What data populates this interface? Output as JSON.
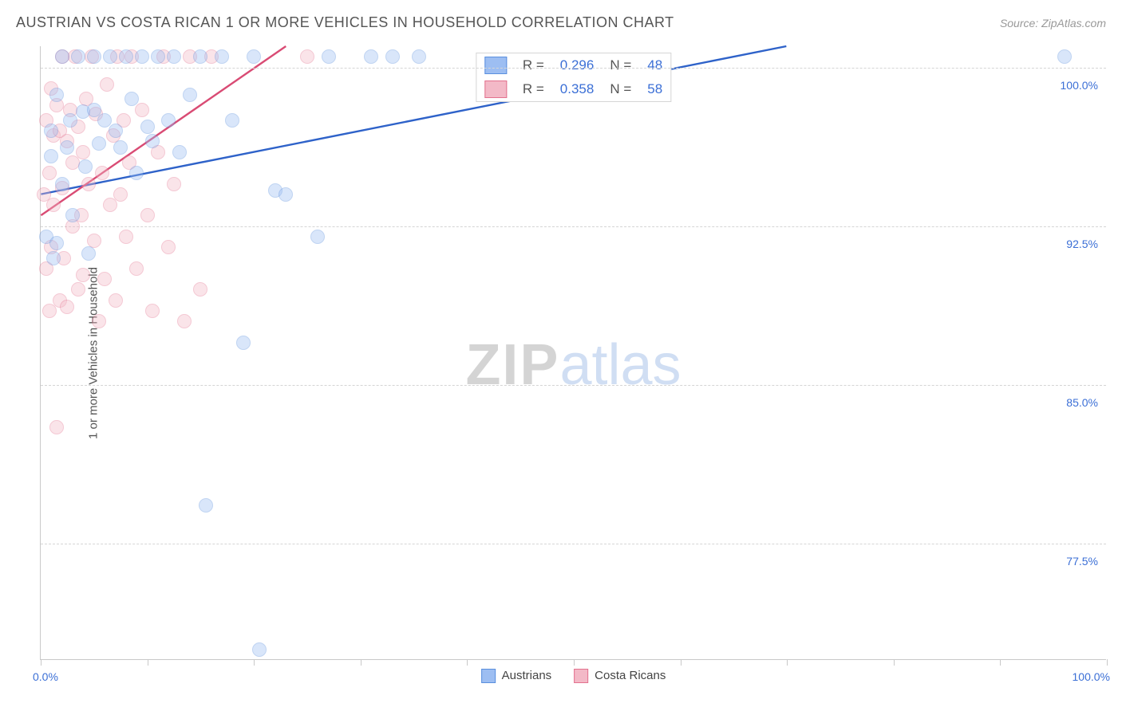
{
  "title": "AUSTRIAN VS COSTA RICAN 1 OR MORE VEHICLES IN HOUSEHOLD CORRELATION CHART",
  "source": "Source: ZipAtlas.com",
  "watermark": {
    "zip": "ZIP",
    "atlas": "atlas"
  },
  "chart": {
    "type": "scatter",
    "background_color": "#ffffff",
    "grid_color": "#d5d5d5",
    "border_color": "#c9c9c9",
    "ylabel": "1 or more Vehicles in Household",
    "ylabel_fontsize": 15,
    "xlim": [
      0,
      100
    ],
    "ylim": [
      72,
      101
    ],
    "yticks": [
      77.5,
      85.0,
      92.5,
      100.0
    ],
    "ytick_labels": [
      "77.5%",
      "85.0%",
      "92.5%",
      "100.0%"
    ],
    "xtick_positions": [
      0,
      10,
      20,
      30,
      40,
      50,
      60,
      70,
      80,
      90,
      100
    ],
    "x_labels": {
      "min": "0.0%",
      "max": "100.0%"
    },
    "tick_label_color": "#3b6fd6",
    "marker_radius": 9,
    "marker_opacity": 0.38,
    "series": [
      {
        "name": "Austrians",
        "color_fill": "#9dbef2",
        "color_stroke": "#5a8fde",
        "R": 0.296,
        "N": 48,
        "trend": {
          "x1": 0,
          "y1": 94.0,
          "x2": 70,
          "y2": 101.0,
          "stroke": "#2e62c9",
          "width": 2.4
        },
        "points": [
          [
            0.5,
            92.0
          ],
          [
            1.0,
            95.8
          ],
          [
            1.0,
            97.0
          ],
          [
            1.2,
            91.0
          ],
          [
            1.5,
            98.7
          ],
          [
            1.5,
            91.7
          ],
          [
            2.0,
            94.5
          ],
          [
            2.0,
            100.5
          ],
          [
            2.5,
            96.2
          ],
          [
            2.8,
            97.5
          ],
          [
            3.0,
            93.0
          ],
          [
            3.5,
            100.5
          ],
          [
            4.0,
            97.9
          ],
          [
            4.2,
            95.3
          ],
          [
            4.5,
            91.2
          ],
          [
            5.0,
            98.0
          ],
          [
            5.0,
            100.5
          ],
          [
            5.5,
            96.4
          ],
          [
            6.0,
            97.5
          ],
          [
            6.5,
            100.5
          ],
          [
            7.0,
            97.0
          ],
          [
            7.5,
            96.2
          ],
          [
            8.0,
            100.5
          ],
          [
            8.5,
            98.5
          ],
          [
            9.0,
            95.0
          ],
          [
            9.5,
            100.5
          ],
          [
            10.0,
            97.2
          ],
          [
            10.5,
            96.5
          ],
          [
            11.0,
            100.5
          ],
          [
            12.0,
            97.5
          ],
          [
            12.5,
            100.5
          ],
          [
            13.0,
            96.0
          ],
          [
            14.0,
            98.7
          ],
          [
            15.0,
            100.5
          ],
          [
            15.5,
            79.3
          ],
          [
            17.0,
            100.5
          ],
          [
            18.0,
            97.5
          ],
          [
            19.0,
            87.0
          ],
          [
            20.0,
            100.5
          ],
          [
            20.5,
            72.5
          ],
          [
            22.0,
            94.2
          ],
          [
            23.0,
            94.0
          ],
          [
            26.0,
            92.0
          ],
          [
            27.0,
            100.5
          ],
          [
            31.0,
            100.5
          ],
          [
            33.0,
            100.5
          ],
          [
            35.5,
            100.5
          ],
          [
            96.0,
            100.5
          ]
        ]
      },
      {
        "name": "Costa Ricans",
        "color_fill": "#f3b9c7",
        "color_stroke": "#e3718e",
        "R": 0.358,
        "N": 58,
        "trend": {
          "x1": 0,
          "y1": 93.0,
          "x2": 23,
          "y2": 101.0,
          "stroke": "#d94b74",
          "width": 2.4
        },
        "points": [
          [
            0.3,
            94.0
          ],
          [
            0.5,
            90.5
          ],
          [
            0.5,
            97.5
          ],
          [
            0.8,
            88.5
          ],
          [
            0.8,
            95.0
          ],
          [
            1.0,
            91.5
          ],
          [
            1.0,
            99.0
          ],
          [
            1.2,
            96.8
          ],
          [
            1.2,
            93.5
          ],
          [
            1.5,
            98.2
          ],
          [
            1.5,
            83.0
          ],
          [
            1.8,
            97.0
          ],
          [
            1.8,
            89.0
          ],
          [
            2.0,
            94.3
          ],
          [
            2.0,
            100.5
          ],
          [
            2.2,
            91.0
          ],
          [
            2.5,
            96.5
          ],
          [
            2.5,
            88.7
          ],
          [
            2.8,
            98.0
          ],
          [
            3.0,
            92.5
          ],
          [
            3.0,
            95.5
          ],
          [
            3.2,
            100.5
          ],
          [
            3.5,
            89.5
          ],
          [
            3.5,
            97.2
          ],
          [
            3.8,
            93.0
          ],
          [
            4.0,
            96.0
          ],
          [
            4.0,
            90.2
          ],
          [
            4.3,
            98.5
          ],
          [
            4.5,
            94.5
          ],
          [
            4.8,
            100.5
          ],
          [
            5.0,
            91.8
          ],
          [
            5.2,
            97.8
          ],
          [
            5.5,
            88.0
          ],
          [
            5.8,
            95.0
          ],
          [
            6.0,
            90.0
          ],
          [
            6.2,
            99.2
          ],
          [
            6.5,
            93.5
          ],
          [
            6.8,
            96.8
          ],
          [
            7.0,
            89.0
          ],
          [
            7.2,
            100.5
          ],
          [
            7.5,
            94.0
          ],
          [
            7.8,
            97.5
          ],
          [
            8.0,
            92.0
          ],
          [
            8.3,
            95.5
          ],
          [
            8.5,
            100.5
          ],
          [
            9.0,
            90.5
          ],
          [
            9.5,
            98.0
          ],
          [
            10.0,
            93.0
          ],
          [
            10.5,
            88.5
          ],
          [
            11.0,
            96.0
          ],
          [
            11.5,
            100.5
          ],
          [
            12.0,
            91.5
          ],
          [
            12.5,
            94.5
          ],
          [
            13.5,
            88.0
          ],
          [
            14.0,
            100.5
          ],
          [
            15.0,
            89.5
          ],
          [
            16.0,
            100.5
          ],
          [
            25.0,
            100.5
          ]
        ]
      }
    ],
    "legend_bottom": {
      "items": [
        {
          "label": "Austrians",
          "fill": "#9dbef2",
          "stroke": "#5a8fde"
        },
        {
          "label": "Costa Ricans",
          "fill": "#f3b9c7",
          "stroke": "#e3718e"
        }
      ]
    },
    "legend_box": {
      "r_label": "R =",
      "n_label": "N =",
      "rows": [
        {
          "fill": "#9dbef2",
          "stroke": "#5a8fde",
          "R": "0.296",
          "N": "48"
        },
        {
          "fill": "#f3b9c7",
          "stroke": "#e3718e",
          "R": "0.358",
          "N": "58"
        }
      ]
    }
  }
}
